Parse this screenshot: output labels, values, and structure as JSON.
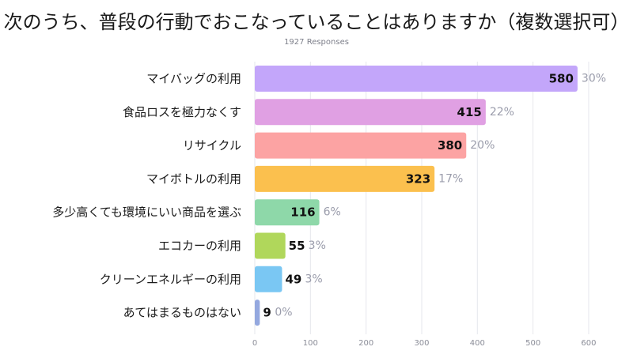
{
  "title": "次のうち、普段の行動でおこなっていることはありますか（複数選択可）",
  "subtitle": "1927 Responses",
  "chart_data": {
    "type": "bar",
    "orientation": "horizontal",
    "categories": [
      "マイバッグの利用",
      "食品ロスを極力なくす",
      "リサイクル",
      "マイボトルの利用",
      "多少高くても環境にいい商品を選ぶ",
      "エコカーの利用",
      "クリーンエネルギーの利用",
      "あてはまるものはない"
    ],
    "values": [
      580,
      415,
      380,
      323,
      116,
      55,
      49,
      9
    ],
    "percentages": [
      "30%",
      "22%",
      "20%",
      "17%",
      "6%",
      "3%",
      "3%",
      "0%"
    ],
    "colors": [
      "#c3a6fa",
      "#e0a0e3",
      "#fca3a3",
      "#fbc04e",
      "#8ed8a9",
      "#b0d75b",
      "#7ac7f3",
      "#94a8df"
    ],
    "xticks": [
      "0",
      "100",
      "200",
      "300",
      "400",
      "500",
      "600"
    ],
    "xlim": [
      0,
      680
    ],
    "grid": true
  }
}
